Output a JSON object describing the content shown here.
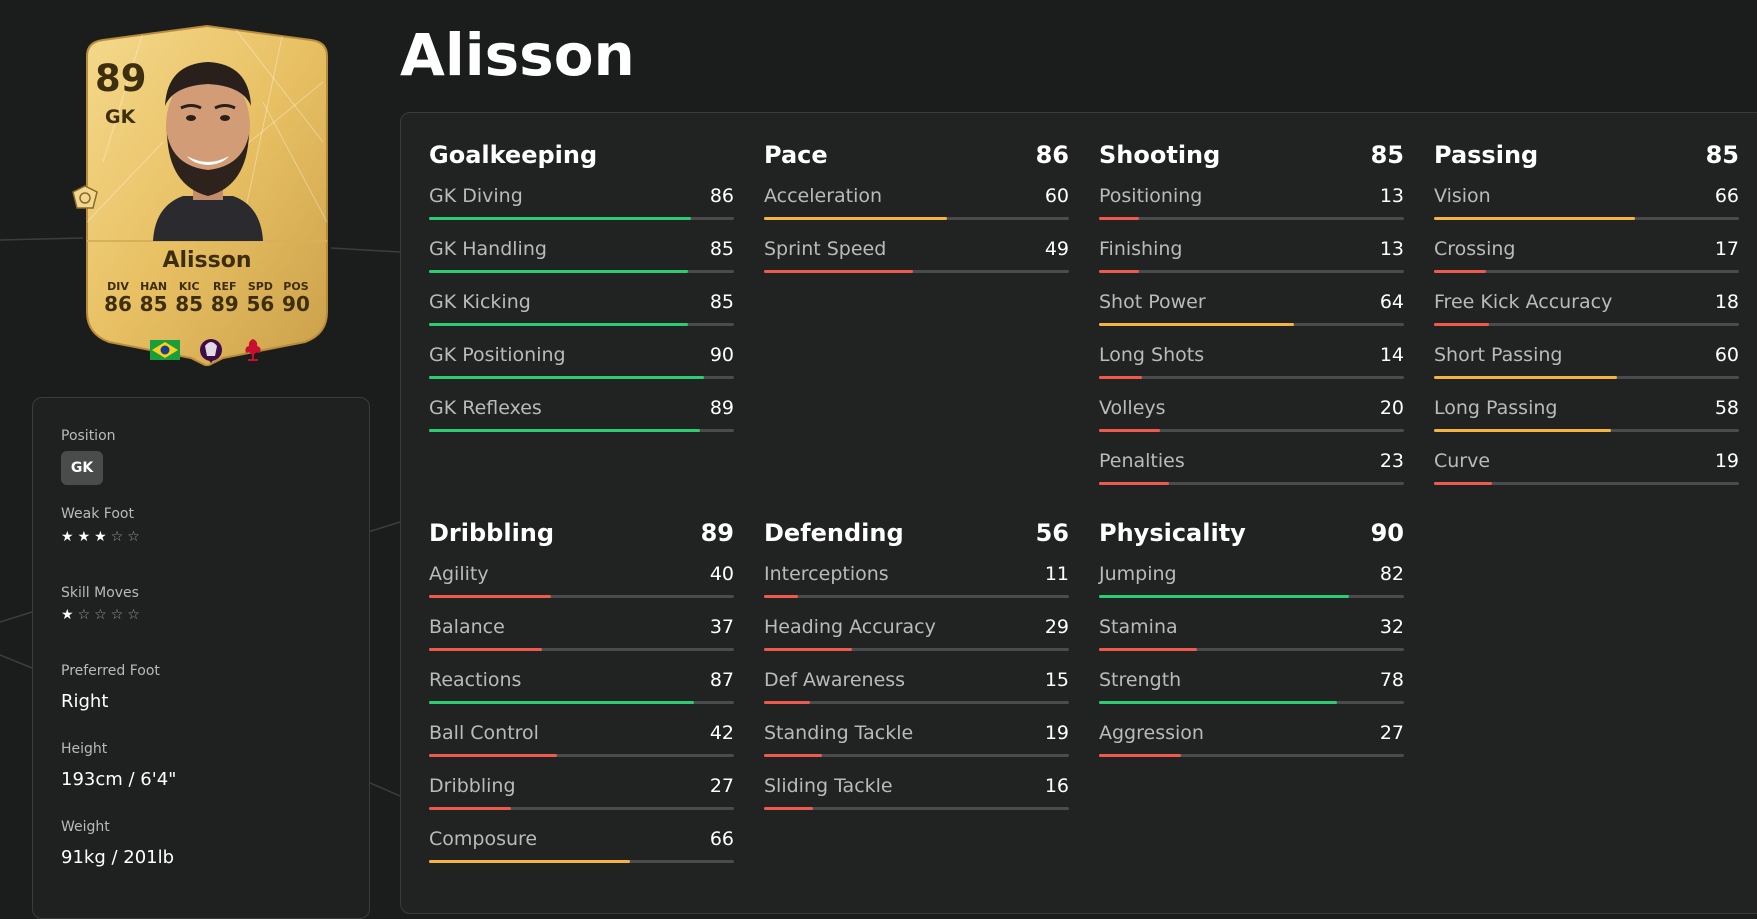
{
  "player": {
    "name": "Alisson",
    "card": {
      "rating": "89",
      "position": "GK",
      "name": "Alisson",
      "stats": [
        {
          "label": "DIV",
          "value": "86"
        },
        {
          "label": "HAN",
          "value": "85"
        },
        {
          "label": "KIC",
          "value": "85"
        },
        {
          "label": "REF",
          "value": "89"
        },
        {
          "label": "SPD",
          "value": "56"
        },
        {
          "label": "POS",
          "value": "90"
        }
      ]
    },
    "info": {
      "position_label": "Position",
      "position_value": "GK",
      "weak_foot_label": "Weak Foot",
      "weak_foot_stars": 3,
      "skill_moves_label": "Skill Moves",
      "skill_moves_stars": 1,
      "preferred_foot_label": "Preferred Foot",
      "preferred_foot_value": "Right",
      "height_label": "Height",
      "height_value": "193cm / 6'4\"",
      "weight_label": "Weight",
      "weight_value": "91kg / 201lb"
    }
  },
  "colors": {
    "high": "#2ecc71",
    "mid": "#f5b342",
    "low": "#ef5a4f",
    "track": "#4a4c4c"
  },
  "groups": [
    {
      "name": "Goalkeeping",
      "value": "",
      "attrs": [
        {
          "name": "GK Diving",
          "value": 86
        },
        {
          "name": "GK Handling",
          "value": 85
        },
        {
          "name": "GK Kicking",
          "value": 85
        },
        {
          "name": "GK Positioning",
          "value": 90
        },
        {
          "name": "GK Reflexes",
          "value": 89
        }
      ]
    },
    {
      "name": "Pace",
      "value": "86",
      "attrs": [
        {
          "name": "Acceleration",
          "value": 60
        },
        {
          "name": "Sprint Speed",
          "value": 49
        }
      ]
    },
    {
      "name": "Shooting",
      "value": "85",
      "attrs": [
        {
          "name": "Positioning",
          "value": 13
        },
        {
          "name": "Finishing",
          "value": 13
        },
        {
          "name": "Shot Power",
          "value": 64
        },
        {
          "name": "Long Shots",
          "value": 14
        },
        {
          "name": "Volleys",
          "value": 20
        },
        {
          "name": "Penalties",
          "value": 23
        }
      ]
    },
    {
      "name": "Passing",
      "value": "85",
      "attrs": [
        {
          "name": "Vision",
          "value": 66
        },
        {
          "name": "Crossing",
          "value": 17
        },
        {
          "name": "Free Kick Accuracy",
          "value": 18
        },
        {
          "name": "Short Passing",
          "value": 60
        },
        {
          "name": "Long Passing",
          "value": 58
        },
        {
          "name": "Curve",
          "value": 19
        }
      ]
    },
    {
      "name": "Dribbling",
      "value": "89",
      "attrs": [
        {
          "name": "Agility",
          "value": 40
        },
        {
          "name": "Balance",
          "value": 37
        },
        {
          "name": "Reactions",
          "value": 87
        },
        {
          "name": "Ball Control",
          "value": 42
        },
        {
          "name": "Dribbling",
          "value": 27
        },
        {
          "name": "Composure",
          "value": 66
        }
      ]
    },
    {
      "name": "Defending",
      "value": "56",
      "attrs": [
        {
          "name": "Interceptions",
          "value": 11
        },
        {
          "name": "Heading Accuracy",
          "value": 29
        },
        {
          "name": "Def Awareness",
          "value": 15
        },
        {
          "name": "Standing Tackle",
          "value": 19
        },
        {
          "name": "Sliding Tackle",
          "value": 16
        }
      ]
    },
    {
      "name": "Physicality",
      "value": "90",
      "attrs": [
        {
          "name": "Jumping",
          "value": 82
        },
        {
          "name": "Stamina",
          "value": 32
        },
        {
          "name": "Strength",
          "value": 78
        },
        {
          "name": "Aggression",
          "value": 27
        }
      ]
    }
  ]
}
